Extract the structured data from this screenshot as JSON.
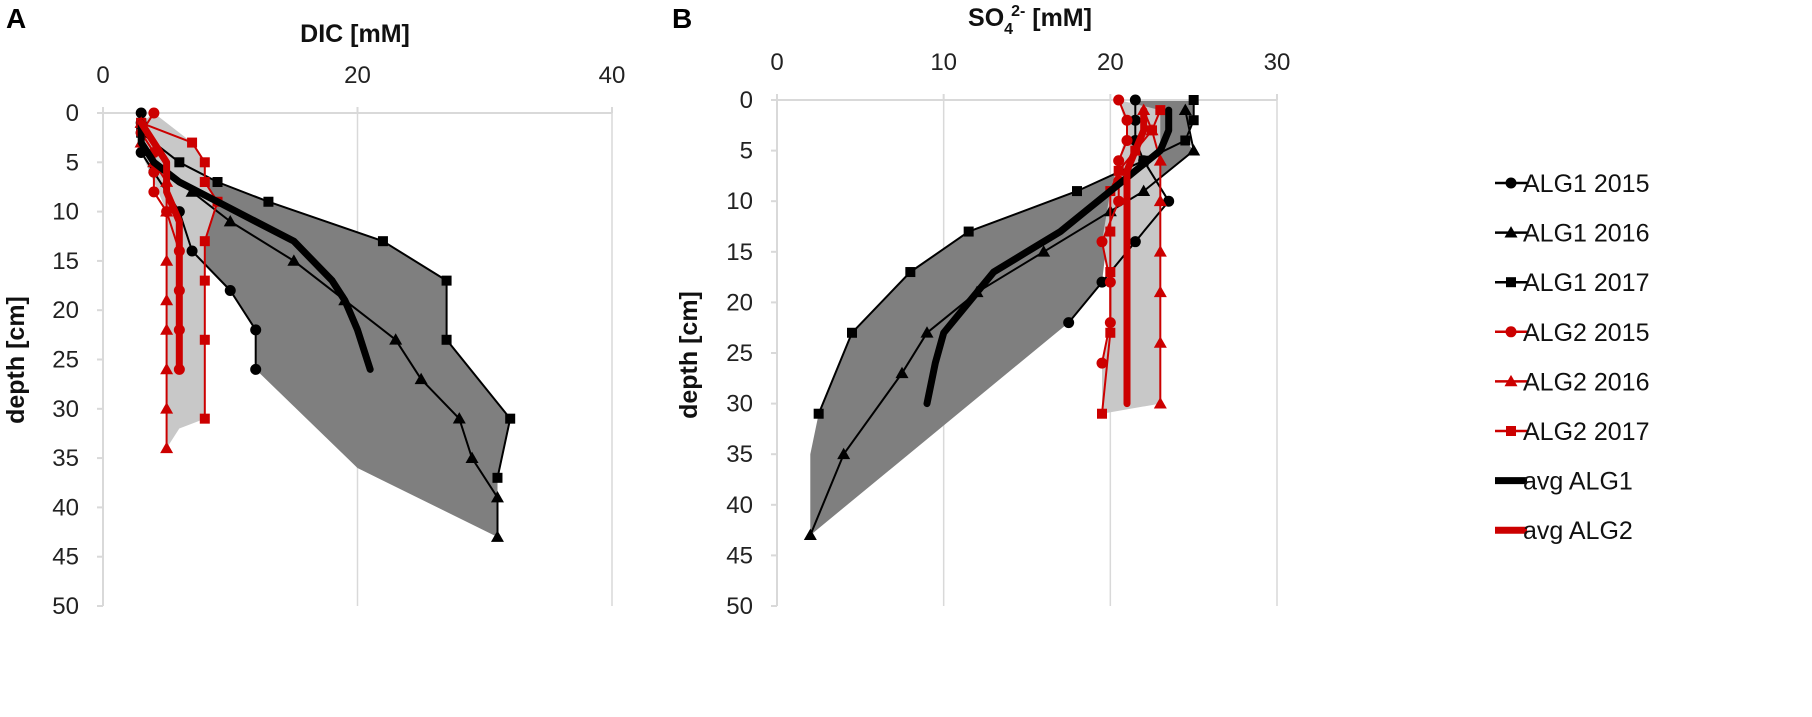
{
  "chart_data": [
    {
      "panel": "A",
      "type": "line",
      "title": "DIC [mM]",
      "xlabel": "DIC [mM]",
      "ylabel": "depth [cm]",
      "xlim": [
        0,
        40
      ],
      "ylim": [
        0,
        50
      ],
      "xticks": [
        0,
        20,
        40
      ],
      "yticks": [
        0,
        5,
        10,
        15,
        20,
        25,
        30,
        35,
        40,
        45,
        50
      ],
      "x_axis_position": "top",
      "y_inverted": true,
      "series": [
        {
          "name": "ALG1 2015",
          "color": "#000000",
          "marker": "circle",
          "points": [
            [
              3,
              0
            ],
            [
              3,
              1
            ],
            [
              3,
              2
            ],
            [
              3,
              4
            ],
            [
              4,
              6
            ],
            [
              6,
              10
            ],
            [
              7,
              14
            ],
            [
              10,
              18
            ],
            [
              12,
              22
            ],
            [
              12,
              26
            ]
          ]
        },
        {
          "name": "ALG1 2016",
          "color": "#000000",
          "marker": "triangle",
          "points": [
            [
              3,
              1
            ],
            [
              3,
              3
            ],
            [
              4,
              5
            ],
            [
              7,
              8
            ],
            [
              10,
              11
            ],
            [
              15,
              15
            ],
            [
              19,
              19
            ],
            [
              23,
              23
            ],
            [
              25,
              27
            ],
            [
              28,
              31
            ],
            [
              29,
              35
            ],
            [
              31,
              39
            ],
            [
              31,
              43
            ]
          ]
        },
        {
          "name": "ALG1 2017",
          "color": "#000000",
          "marker": "square",
          "points": [
            [
              3,
              1
            ],
            [
              3,
              2
            ],
            [
              6,
              5
            ],
            [
              9,
              7
            ],
            [
              13,
              9
            ],
            [
              22,
              13
            ],
            [
              27,
              17
            ],
            [
              27,
              23
            ],
            [
              32,
              31
            ],
            [
              31,
              37
            ]
          ]
        },
        {
          "name": "ALG2 2015",
          "color": "#cc0000",
          "marker": "circle",
          "points": [
            [
              4,
              0
            ],
            [
              3,
              2
            ],
            [
              4,
              4
            ],
            [
              4,
              6
            ],
            [
              4,
              8
            ],
            [
              5,
              10
            ],
            [
              6,
              14
            ],
            [
              6,
              18
            ],
            [
              6,
              22
            ],
            [
              6,
              26
            ]
          ]
        },
        {
          "name": "ALG2 2016",
          "color": "#cc0000",
          "marker": "triangle",
          "points": [
            [
              3,
              1
            ],
            [
              3,
              3
            ],
            [
              4,
              5
            ],
            [
              5,
              7
            ],
            [
              5,
              10
            ],
            [
              5,
              15
            ],
            [
              5,
              19
            ],
            [
              5,
              22
            ],
            [
              5,
              26
            ],
            [
              5,
              30
            ],
            [
              5,
              34
            ]
          ]
        },
        {
          "name": "ALG2 2017",
          "color": "#cc0000",
          "marker": "square",
          "points": [
            [
              3,
              1
            ],
            [
              7,
              3
            ],
            [
              8,
              5
            ],
            [
              8,
              7
            ],
            [
              9,
              9
            ],
            [
              8,
              13
            ],
            [
              8,
              17
            ],
            [
              8,
              23
            ],
            [
              8,
              31
            ]
          ]
        },
        {
          "name": "avg ALG1",
          "color": "#000000",
          "marker": "none",
          "thick": true,
          "points": [
            [
              3,
              1
            ],
            [
              3,
              3
            ],
            [
              4,
              5
            ],
            [
              6,
              7
            ],
            [
              9,
              9
            ],
            [
              12,
              11
            ],
            [
              15,
              13
            ],
            [
              18,
              17
            ],
            [
              19,
              19
            ],
            [
              20,
              22
            ],
            [
              21,
              26
            ]
          ]
        },
        {
          "name": "avg ALG2",
          "color": "#cc0000",
          "marker": "none",
          "thick": true,
          "points": [
            [
              3,
              1
            ],
            [
              4,
              3
            ],
            [
              5,
              5
            ],
            [
              5,
              8
            ],
            [
              6,
              11
            ],
            [
              6,
              15
            ],
            [
              6,
              19
            ],
            [
              6,
              23
            ],
            [
              6,
              26
            ]
          ]
        }
      ],
      "bands": [
        {
          "color": "#7f7f7f",
          "polygon": [
            [
              3,
              0
            ],
            [
              3,
              2
            ],
            [
              6,
              5
            ],
            [
              9,
              7
            ],
            [
              13,
              9
            ],
            [
              22,
              13
            ],
            [
              27,
              17
            ],
            [
              27,
              23
            ],
            [
              32,
              31
            ],
            [
              31,
              37
            ],
            [
              31,
              43
            ],
            [
              20,
              36
            ],
            [
              12,
              26
            ],
            [
              12,
              22
            ],
            [
              10,
              18
            ],
            [
              7,
              14
            ],
            [
              6,
              10
            ],
            [
              4,
              6
            ],
            [
              3,
              4
            ]
          ]
        },
        {
          "color": "#c8c8c8",
          "polygon": [
            [
              4,
              0
            ],
            [
              7,
              3
            ],
            [
              8,
              5
            ],
            [
              8,
              7
            ],
            [
              9,
              9
            ],
            [
              8,
              13
            ],
            [
              8,
              17
            ],
            [
              8,
              23
            ],
            [
              8,
              31
            ],
            [
              6,
              32
            ],
            [
              5,
              34
            ],
            [
              5,
              30
            ],
            [
              5,
              26
            ],
            [
              5,
              22
            ],
            [
              5,
              19
            ],
            [
              5,
              15
            ],
            [
              5,
              10
            ],
            [
              4,
              7
            ],
            [
              3,
              4
            ],
            [
              3,
              1
            ]
          ]
        }
      ]
    },
    {
      "panel": "B",
      "type": "line",
      "title": "SO4 2- [mM]",
      "title_parts": {
        "main": "SO",
        "sub": "4",
        "sup": "2-",
        "units": " [mM]"
      },
      "xlabel": "SO4 2- [mM]",
      "ylabel": "depth [cm]",
      "xlim": [
        0,
        30
      ],
      "ylim": [
        0,
        50
      ],
      "xticks": [
        0,
        10,
        20,
        30
      ],
      "yticks": [
        0,
        5,
        10,
        15,
        20,
        25,
        30,
        35,
        40,
        45,
        50
      ],
      "x_axis_position": "top",
      "y_inverted": true,
      "series": [
        {
          "name": "ALG1 2015",
          "color": "#000000",
          "marker": "circle",
          "points": [
            [
              21.5,
              0
            ],
            [
              21.5,
              2
            ],
            [
              21.5,
              4
            ],
            [
              22,
              6
            ],
            [
              23.5,
              10
            ],
            [
              21.5,
              14
            ],
            [
              19.5,
              18
            ],
            [
              17.5,
              22
            ]
          ]
        },
        {
          "name": "ALG1 2016",
          "color": "#000000",
          "marker": "triangle",
          "points": [
            [
              24.5,
              1
            ],
            [
              25,
              5
            ],
            [
              22,
              9
            ],
            [
              20,
              11
            ],
            [
              16,
              15
            ],
            [
              12,
              19
            ],
            [
              9,
              23
            ],
            [
              7.5,
              27
            ],
            [
              4,
              35
            ],
            [
              2,
              43
            ]
          ]
        },
        {
          "name": "ALG1 2017",
          "color": "#000000",
          "marker": "square",
          "points": [
            [
              25,
              0
            ],
            [
              25,
              2
            ],
            [
              24.5,
              4
            ],
            [
              22,
              6
            ],
            [
              18,
              9
            ],
            [
              11.5,
              13
            ],
            [
              8,
              17
            ],
            [
              4.5,
              23
            ],
            [
              2.5,
              31
            ]
          ]
        },
        {
          "name": "ALG2 2015",
          "color": "#cc0000",
          "marker": "circle",
          "points": [
            [
              20.5,
              0
            ],
            [
              21,
              2
            ],
            [
              21,
              4
            ],
            [
              20.5,
              6
            ],
            [
              20.5,
              8
            ],
            [
              20.5,
              10
            ],
            [
              19.5,
              14
            ],
            [
              20,
              18
            ],
            [
              20,
              22
            ],
            [
              19.5,
              26
            ]
          ]
        },
        {
          "name": "ALG2 2016",
          "color": "#cc0000",
          "marker": "triangle",
          "points": [
            [
              22,
              1
            ],
            [
              22.5,
              3
            ],
            [
              23,
              6
            ],
            [
              23,
              10
            ],
            [
              23,
              15
            ],
            [
              23,
              19
            ],
            [
              23,
              24
            ],
            [
              23,
              30
            ]
          ]
        },
        {
          "name": "ALG2 2017",
          "color": "#cc0000",
          "marker": "square",
          "points": [
            [
              23,
              1
            ],
            [
              22.5,
              3
            ],
            [
              21.5,
              5
            ],
            [
              20.5,
              7
            ],
            [
              20,
              9
            ],
            [
              20,
              13
            ],
            [
              20,
              17
            ],
            [
              20,
              23
            ],
            [
              19.5,
              31
            ]
          ]
        },
        {
          "name": "avg ALG1",
          "color": "#000000",
          "marker": "none",
          "thick": true,
          "points": [
            [
              23.5,
              1
            ],
            [
              23.5,
              3
            ],
            [
              23,
              5
            ],
            [
              21.5,
              7
            ],
            [
              20,
              9
            ],
            [
              18.5,
              11
            ],
            [
              17,
              13
            ],
            [
              15,
              15
            ],
            [
              13,
              17
            ],
            [
              11.5,
              20
            ],
            [
              10,
              23
            ],
            [
              9.5,
              26
            ],
            [
              9,
              30
            ]
          ]
        },
        {
          "name": "avg ALG2",
          "color": "#cc0000",
          "marker": "none",
          "thick": true,
          "points": [
            [
              22,
              1
            ],
            [
              22,
              3
            ],
            [
              21.5,
              5
            ],
            [
              21,
              7
            ],
            [
              21,
              10
            ],
            [
              21,
              14
            ],
            [
              21,
              18
            ],
            [
              21,
              22
            ],
            [
              21,
              26
            ],
            [
              21,
              30
            ]
          ]
        }
      ],
      "bands": [
        {
          "color": "#7f7f7f",
          "polygon": [
            [
              21.5,
              0
            ],
            [
              25,
              0
            ],
            [
              25,
              2
            ],
            [
              24.5,
              4
            ],
            [
              25,
              5
            ],
            [
              22,
              9
            ],
            [
              20,
              11
            ],
            [
              19.5,
              18
            ],
            [
              17.5,
              22
            ],
            [
              2,
              43
            ],
            [
              2,
              35
            ],
            [
              2.5,
              31
            ],
            [
              4.5,
              23
            ],
            [
              8,
              17
            ],
            [
              11.5,
              13
            ],
            [
              18,
              9
            ],
            [
              22,
              6
            ],
            [
              21.5,
              4
            ]
          ]
        },
        {
          "color": "#c8c8c8",
          "polygon": [
            [
              20.5,
              0
            ],
            [
              23,
              1
            ],
            [
              23,
              6
            ],
            [
              23,
              10
            ],
            [
              23,
              15
            ],
            [
              23,
              19
            ],
            [
              23,
              24
            ],
            [
              23,
              30
            ],
            [
              19.5,
              31
            ],
            [
              19.5,
              26
            ],
            [
              20,
              22
            ],
            [
              20,
              18
            ],
            [
              19.5,
              14
            ],
            [
              20,
              9
            ],
            [
              20.5,
              6
            ],
            [
              21,
              3
            ]
          ]
        }
      ]
    }
  ],
  "panels": {
    "a": {
      "letter": "A",
      "title": "DIC [mM]",
      "ylabel": "depth [cm]"
    },
    "b": {
      "letter": "B",
      "title_main": "SO",
      "title_sub": "4",
      "title_sup": "2-",
      "title_units": " [mM]",
      "ylabel": "depth [cm]"
    }
  },
  "legend": {
    "position": "right",
    "items": [
      {
        "label": "ALG1 2015",
        "color": "#000000",
        "marker": "circle"
      },
      {
        "label": "ALG1 2016",
        "color": "#000000",
        "marker": "triangle"
      },
      {
        "label": "ALG1 2017",
        "color": "#000000",
        "marker": "square"
      },
      {
        "label": "ALG2 2015",
        "color": "#cc0000",
        "marker": "circle"
      },
      {
        "label": "ALG2 2016",
        "color": "#cc0000",
        "marker": "triangle"
      },
      {
        "label": "ALG2 2017",
        "color": "#cc0000",
        "marker": "square"
      },
      {
        "label": "avg ALG1",
        "color": "#000000",
        "marker": "none"
      },
      {
        "label": "avg ALG2",
        "color": "#cc0000",
        "marker": "none"
      }
    ]
  }
}
